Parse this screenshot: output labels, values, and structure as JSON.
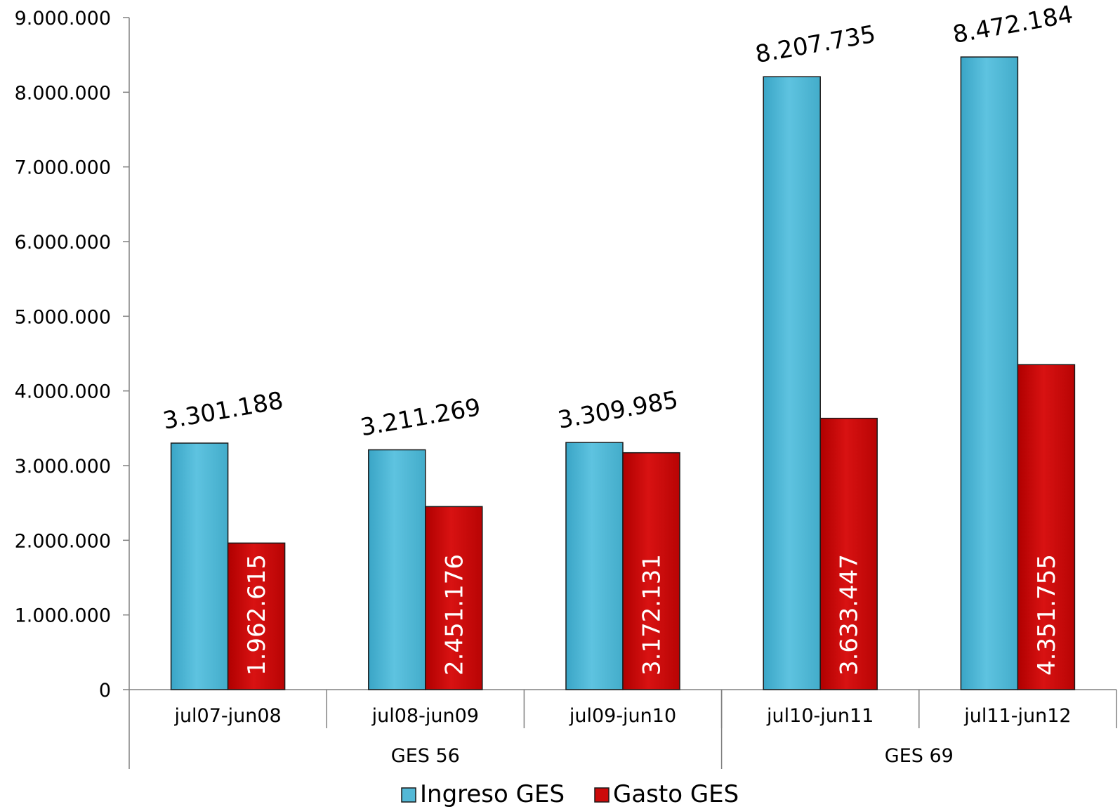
{
  "chart_data": {
    "type": "bar",
    "categories": [
      "jul07-jun08",
      "jul08-jun09",
      "jul09-jun10",
      "jul10-jun11",
      "jul11-jun12"
    ],
    "groups": [
      {
        "label": "GES 56",
        "categories": [
          "jul07-jun08",
          "jul08-jun09",
          "jul09-jun10"
        ]
      },
      {
        "label": "GES 69",
        "categories": [
          "jul10-jun11",
          "jul11-jun12"
        ]
      }
    ],
    "series": [
      {
        "name": "Ingreso GES",
        "color": "#53b8d6",
        "values": [
          3301188,
          3211269,
          3309985,
          8207735,
          8472184
        ],
        "labels": [
          "3.301.188",
          "3.211.269",
          "3.309.985",
          "8.207.735",
          "8.472.184"
        ]
      },
      {
        "name": "Gasto GES",
        "color": "#cc0a0a",
        "values": [
          1962615,
          2451176,
          3172131,
          3633447,
          4351755
        ],
        "labels": [
          "1.962.615",
          "2.451.176",
          "3.172.131",
          "3.633.447",
          "4.351.755"
        ]
      }
    ],
    "ylim": [
      0,
      9000000
    ],
    "yticks": [
      0,
      1000000,
      2000000,
      3000000,
      4000000,
      5000000,
      6000000,
      7000000,
      8000000,
      9000000
    ],
    "ytick_labels": [
      "0",
      "1.000.000",
      "2.000.000",
      "3.000.000",
      "4.000.000",
      "5.000.000",
      "6.000.000",
      "7.000.000",
      "8.000.000",
      "9.000.000"
    ],
    "title": "",
    "xlabel": "",
    "ylabel": "",
    "grid": false,
    "legend": "bottom-center"
  }
}
